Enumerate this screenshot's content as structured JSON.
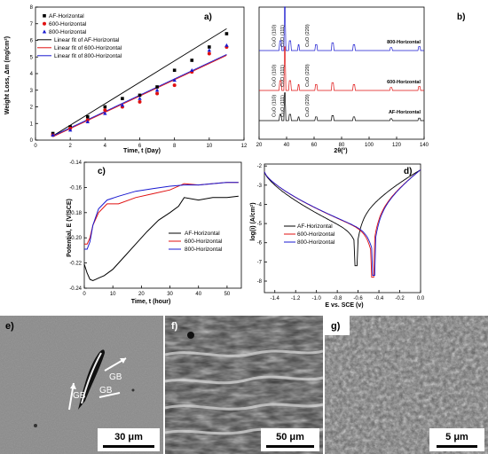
{
  "colors": {
    "af": "#000000",
    "h600": "#e01010",
    "h800": "#1a1ad0"
  },
  "chart_data": [
    {
      "panel": "a)",
      "type": "scatter",
      "xlabel": "Time, t (Day)",
      "ylabel": "Weight Loss, Δm (mg/cm²)",
      "xlim": [
        0,
        12
      ],
      "ylim": [
        0,
        8
      ],
      "xticks": [
        "0",
        "2",
        "4",
        "6",
        "8",
        "10",
        "12"
      ],
      "yticks": [
        "0",
        "1",
        "2",
        "3",
        "4",
        "5",
        "6",
        "7",
        "8"
      ],
      "legend": [
        "AF-Horizontal",
        "600-Horizontal",
        "800-Horizontal",
        "Linear fit of AF-Horizontal",
        "Linear fit of 600-Horizontal",
        "Linear fit of 800-Horizontal"
      ],
      "x": [
        1,
        2,
        3,
        4,
        5,
        6,
        7,
        8,
        9,
        10,
        11
      ],
      "series": [
        {
          "name": "AF-Horizontal",
          "values": [
            0.4,
            0.8,
            1.4,
            2.0,
            2.5,
            2.7,
            3.2,
            4.2,
            4.8,
            5.6,
            6.4
          ]
        },
        {
          "name": "600-Horizontal",
          "values": [
            0.3,
            0.7,
            1.2,
            1.8,
            2.0,
            2.3,
            2.8,
            3.3,
            4.1,
            5.2,
            5.6
          ]
        },
        {
          "name": "800-Horizontal",
          "values": [
            0.3,
            0.6,
            1.1,
            1.6,
            2.1,
            2.5,
            3.0,
            3.6,
            4.2,
            5.4,
            5.7
          ]
        }
      ],
      "fits": [
        {
          "name": "Linear fit of AF-Horizontal",
          "x": [
            1,
            11
          ],
          "y": [
            0.25,
            6.7
          ]
        },
        {
          "name": "Linear fit of 600-Horizontal",
          "x": [
            1,
            11
          ],
          "y": [
            0.2,
            5.1
          ]
        },
        {
          "name": "Linear fit of 800-Horizontal",
          "x": [
            1,
            11
          ],
          "y": [
            0.25,
            5.15
          ]
        }
      ]
    },
    {
      "panel": "b)",
      "type": "line",
      "xlabel": "2θ(°)",
      "xlim": [
        20,
        140
      ],
      "xticks": [
        "20",
        "40",
        "60",
        "80",
        "100",
        "120",
        "140"
      ],
      "series_labels": [
        "800-Horizontal",
        "600-Horizontal",
        "AF-Horizontal"
      ],
      "peak_labels": [
        "CuO (110)",
        "CuO (111)",
        "CuO (220)"
      ]
    },
    {
      "panel": "c)",
      "type": "line",
      "xlabel": "Time, t (hour)",
      "ylabel": "Potential, E (V/SCE)",
      "xlim": [
        0,
        55
      ],
      "ylim": [
        -0.24,
        -0.14
      ],
      "xticks": [
        "0",
        "10",
        "20",
        "30",
        "40",
        "50"
      ],
      "yticks": [
        "-0.24",
        "-0.22",
        "-0.20",
        "-0.18",
        "-0.16",
        "-0.14"
      ],
      "legend": [
        "AF-Horizontal",
        "600-Horizontal",
        "800-Horizontal"
      ],
      "series": [
        {
          "name": "AF-Horizontal",
          "x": [
            0,
            1,
            2,
            3,
            4,
            5,
            7,
            10,
            14,
            18,
            22,
            26,
            30,
            33,
            35,
            40,
            45,
            50,
            54
          ],
          "y": [
            -0.221,
            -0.228,
            -0.233,
            -0.234,
            -0.233,
            -0.232,
            -0.23,
            -0.225,
            -0.215,
            -0.205,
            -0.195,
            -0.186,
            -0.18,
            -0.175,
            -0.168,
            -0.17,
            -0.168,
            -0.168,
            -0.167
          ]
        },
        {
          "name": "600-Horizontal",
          "x": [
            0,
            1,
            2,
            3,
            5,
            8,
            12,
            18,
            24,
            30,
            35,
            40,
            45,
            50,
            54
          ],
          "y": [
            -0.205,
            -0.205,
            -0.2,
            -0.19,
            -0.18,
            -0.173,
            -0.173,
            -0.168,
            -0.165,
            -0.162,
            -0.157,
            -0.158,
            -0.157,
            -0.156,
            -0.156
          ]
        },
        {
          "name": "800-Horizontal",
          "x": [
            0,
            1,
            2,
            3,
            5,
            8,
            12,
            18,
            24,
            30,
            35,
            40,
            45,
            50,
            54
          ],
          "y": [
            -0.209,
            -0.209,
            -0.203,
            -0.19,
            -0.177,
            -0.17,
            -0.167,
            -0.163,
            -0.161,
            -0.159,
            -0.158,
            -0.158,
            -0.157,
            -0.156,
            -0.156
          ]
        }
      ]
    },
    {
      "panel": "d)",
      "type": "line",
      "xlabel": "E vs. SCE (v)",
      "ylabel": "log(i) (A/cm²)",
      "xlim": [
        -1.5,
        0.0
      ],
      "xticks": [
        "-1.4",
        "-1.2",
        "-1.0",
        "-0.8",
        "-0.6",
        "-0.4",
        "-0.2",
        "0.0"
      ],
      "yticks": [
        "-2",
        "-3",
        "-4",
        "-5",
        "-6",
        "-7",
        "-8"
      ],
      "legend": [
        "AF-Horizontal",
        "600-Horizontal",
        "800-Horizontal"
      ],
      "corrosion_potential": {
        "AF-Horizontal": -0.62,
        "600-Horizontal": -0.46,
        "800-Horizontal": -0.45
      }
    }
  ],
  "sem": [
    {
      "panel": "e)",
      "labels": [
        "GB",
        "GB",
        "GB"
      ],
      "scale": "30 μm"
    },
    {
      "panel": "f)",
      "scale": "50 μm"
    },
    {
      "panel": "g)",
      "scale": "5 μm"
    }
  ]
}
